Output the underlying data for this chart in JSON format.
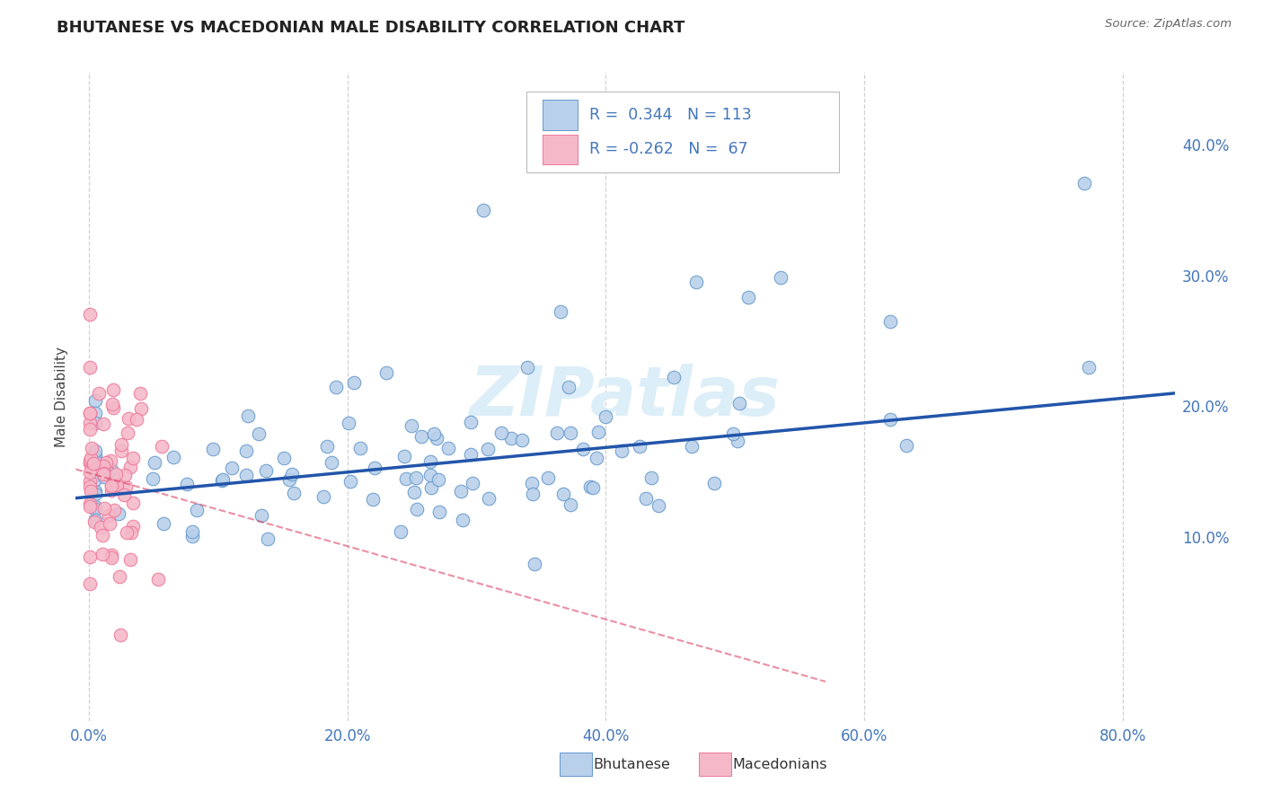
{
  "title": "BHUTANESE VS MACEDONIAN MALE DISABILITY CORRELATION CHART",
  "source": "Source: ZipAtlas.com",
  "xlabel_ticks": [
    "0.0%",
    "20.0%",
    "40.0%",
    "60.0%",
    "80.0%"
  ],
  "xlabel_tick_vals": [
    0.0,
    0.2,
    0.4,
    0.6,
    0.8
  ],
  "ylabel_ticks": [
    "10.0%",
    "20.0%",
    "30.0%",
    "40.0%"
  ],
  "ylabel_tick_vals": [
    0.1,
    0.2,
    0.3,
    0.4
  ],
  "xlim": [
    -0.01,
    0.84
  ],
  "ylim": [
    -0.04,
    0.455
  ],
  "r_bhutanese": 0.344,
  "n_bhutanese": 113,
  "r_macedonian": -0.262,
  "n_macedonian": 67,
  "color_blue_face": "#b8d0ea",
  "color_blue_edge": "#6699cc",
  "color_pink_face": "#f5b8c8",
  "color_pink_edge": "#ee7799",
  "color_blue_line": "#2255aa",
  "color_pink_line": "#dd4466",
  "watermark_text_color": "#dceef8",
  "grid_color": "#cccccc",
  "title_color": "#222222",
  "tick_color": "#4477bb",
  "source_color": "#666666",
  "ylabel_text": "Male Disability",
  "legend_label_blue": "Bhutanese",
  "legend_label_pink": "Macedonians"
}
